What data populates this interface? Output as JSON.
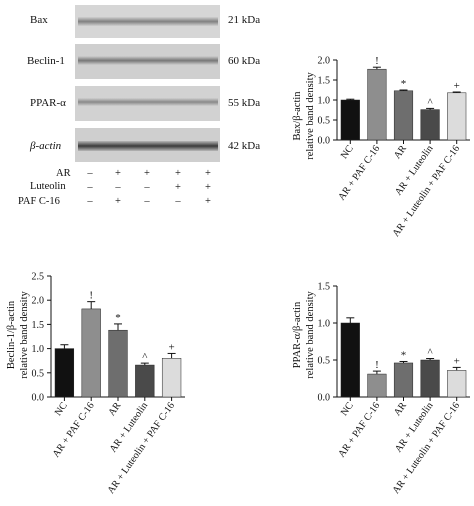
{
  "western_blot": {
    "proteins": [
      {
        "name": "Bax",
        "size": "21 kDa"
      },
      {
        "name": "Beclin-1",
        "size": "60 kDa"
      },
      {
        "name": "PPAR-α",
        "size": "55 kDa"
      },
      {
        "name": "β-actin",
        "size": "42 kDa"
      }
    ],
    "treatments": [
      {
        "label": "AR",
        "signs": [
          "–",
          "+",
          "+",
          "+",
          "+"
        ]
      },
      {
        "label": "Luteolin",
        "signs": [
          "–",
          "–",
          "–",
          "+",
          "+"
        ]
      },
      {
        "label": "PAF C-16",
        "signs": [
          "–",
          "+",
          "–",
          "–",
          "+"
        ]
      }
    ]
  },
  "chart_data": [
    {
      "type": "bar",
      "ylabel": [
        "Bax/β-actin",
        "relative band density"
      ],
      "ylim": [
        0,
        2.0
      ],
      "yticks": [
        "0.0",
        "0.5",
        "1.0",
        "1.5",
        "2.0"
      ],
      "categories": [
        "NC",
        "AR + PAF C-16",
        "AR",
        "AR + Luteolin",
        "AR + Luteolin + PAF C-16"
      ],
      "values": [
        1.0,
        1.77,
        1.23,
        0.76,
        1.18
      ],
      "errors": [
        0.02,
        0.05,
        0.02,
        0.03,
        0.02
      ],
      "marks": [
        "",
        "!",
        "*",
        "^",
        "+"
      ],
      "colors": [
        "#111111",
        "#8e8e8e",
        "#6e6e6e",
        "#4a4a4a",
        "#dcdcdc"
      ]
    },
    {
      "type": "bar",
      "ylabel": [
        "Beclin-1/β-actin",
        "relative band density"
      ],
      "ylim": [
        0,
        2.5
      ],
      "yticks": [
        "0.0",
        "0.5",
        "1.0",
        "1.5",
        "2.0",
        "2.5"
      ],
      "categories": [
        "NC",
        "AR + PAF C-16",
        "AR",
        "AR + Luteolin",
        "AR + Luteolin + PAF C-16"
      ],
      "values": [
        1.0,
        1.82,
        1.38,
        0.66,
        0.8
      ],
      "errors": [
        0.08,
        0.15,
        0.13,
        0.04,
        0.1
      ],
      "marks": [
        "",
        "!",
        "*",
        "^",
        "+"
      ],
      "colors": [
        "#111111",
        "#8e8e8e",
        "#6e6e6e",
        "#4a4a4a",
        "#dcdcdc"
      ]
    },
    {
      "type": "bar",
      "ylabel": [
        "PPAR-α/β-actin",
        "relative band density"
      ],
      "ylim": [
        0,
        1.5
      ],
      "yticks": [
        "0.0",
        "0.5",
        "1.0",
        "1.5"
      ],
      "categories": [
        "NC",
        "AR + PAF C-16",
        "AR",
        "AR + Luteolin",
        "AR + Luteolin + PAF C-16"
      ],
      "values": [
        1.0,
        0.31,
        0.46,
        0.5,
        0.36
      ],
      "errors": [
        0.07,
        0.04,
        0.02,
        0.02,
        0.04
      ],
      "marks": [
        "",
        "!",
        "*",
        "^",
        "+"
      ],
      "colors": [
        "#111111",
        "#8e8e8e",
        "#6e6e6e",
        "#4a4a4a",
        "#dcdcdc"
      ]
    }
  ]
}
